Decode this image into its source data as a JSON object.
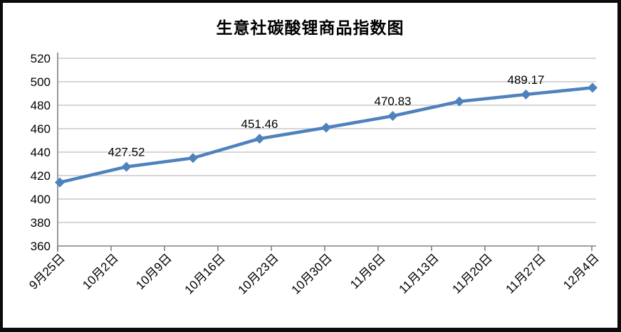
{
  "chart_data": {
    "type": "line",
    "title": "生意社碳酸锂商品指数图",
    "x_tick_labels": [
      "9月25日",
      "10月2日",
      "10月9日",
      "10月16日",
      "10月23日",
      "10月30日",
      "11月6日",
      "11月13日",
      "11月20日",
      "11月27日",
      "12月4日"
    ],
    "series": [
      {
        "values": [
          414.2,
          427.52,
          435.0,
          451.46,
          460.9,
          470.83,
          483.2,
          489.17,
          494.9
        ]
      }
    ],
    "labeled_points": [
      {
        "index": 1,
        "label": "427.52"
      },
      {
        "index": 3,
        "label": "451.46"
      },
      {
        "index": 5,
        "label": "470.83"
      },
      {
        "index": 7,
        "label": "489.17"
      }
    ],
    "ylim": [
      360,
      520
    ],
    "y_tick_step": 20,
    "y_tick_labels": [
      "360",
      "380",
      "400",
      "420",
      "440",
      "460",
      "480",
      "500",
      "520"
    ],
    "grid": "horizontal-only",
    "legend_position": "none",
    "marker_shape": "diamond",
    "line_color": "#4F81BD",
    "axis_color": "#808080",
    "gridline_color": "#BDBDBD",
    "text_color": "#000000",
    "background_color": "#FFFFFF",
    "border_color": "#0B0B0B"
  }
}
